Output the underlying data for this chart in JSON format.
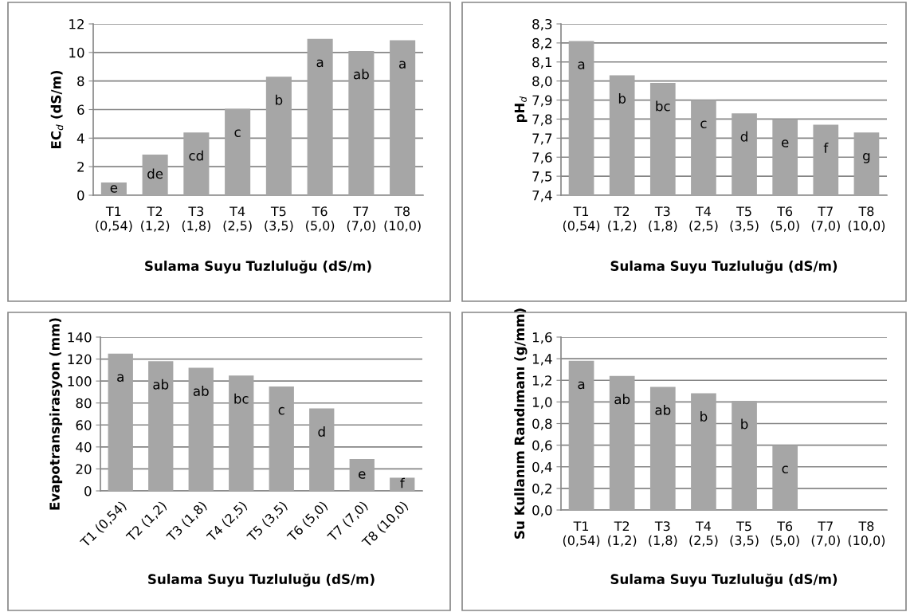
{
  "chart_data": [
    {
      "type": "bar",
      "categories": [
        "T1\n(0,54)",
        "T2\n(1,2)",
        "T3\n(1,8)",
        "T4\n(2,5)",
        "T5\n(3,5)",
        "T6\n(5,0)",
        "T7\n(7,0)",
        "T8\n(10,0)"
      ],
      "values": [
        0.9,
        2.85,
        4.4,
        6.05,
        8.3,
        10.95,
        10.1,
        10.85
      ],
      "value_labels": [
        "e",
        "de",
        "cd",
        "c",
        "b",
        "a",
        "ab",
        "a"
      ],
      "color": "#a6a6a6",
      "xlabel": "Sulama Suyu Tuzluluğu (dS/m)",
      "ylabel": "EC$_{d}$ (dS/m)",
      "ylim": [
        0,
        12
      ],
      "yticks": [
        0,
        2,
        4,
        6,
        8,
        10,
        12
      ],
      "grid": "y",
      "legend": false
    },
    {
      "type": "bar",
      "categories": [
        "T1\n(0,54)",
        "T2\n(1,2)",
        "T3\n(1,8)",
        "T4\n(2,5)",
        "T5\n(3,5)",
        "T6\n(5,0)",
        "T7\n(7,0)",
        "T8\n(10,0)"
      ],
      "values": [
        8.21,
        8.03,
        7.99,
        7.9,
        7.83,
        7.8,
        7.77,
        7.73
      ],
      "value_labels": [
        "a",
        "b",
        "bc",
        "c",
        "d",
        "e",
        "f",
        "g"
      ],
      "color": "#a6a6a6",
      "xlabel": "Sulama Suyu Tuzluluğu (dS/m)",
      "ylabel": "pH$_{d}$",
      "ylim": [
        7.4,
        8.3
      ],
      "yticks": [
        {
          "value": 7.4,
          "label": "7,4"
        },
        {
          "value": 7.5,
          "label": "7,5"
        },
        {
          "value": 7.6,
          "label": "7,6"
        },
        {
          "value": 7.7,
          "label": "7,7"
        },
        {
          "value": 7.8,
          "label": "7,8"
        },
        {
          "value": 7.9,
          "label": "7,9"
        },
        {
          "value": 8.0,
          "label": "8,0"
        },
        {
          "value": 8.1,
          "label": "8,1"
        },
        {
          "value": 8.2,
          "label": "8,2"
        },
        {
          "value": 8.3,
          "label": "8,3"
        }
      ],
      "grid": "y",
      "legend": false
    },
    {
      "type": "bar",
      "categories": [
        "T1 (0,54)",
        "T2 (1,2)",
        "T3 (1,8)",
        "T4 (2,5)",
        "T5 (3,5)",
        "T6 (5,0)",
        "T7 (7,0)",
        "T8 (10,0)"
      ],
      "values": [
        125,
        118,
        112,
        105,
        95,
        75,
        29,
        12
      ],
      "value_labels": [
        "a",
        "ab",
        "ab",
        "bc",
        "c",
        "d",
        "e",
        "f"
      ],
      "color": "#a6a6a6",
      "xlabel": "Sulama Suyu Tuzluluğu (dS/m)",
      "ylabel": "Evapotranspirasyon (mm)",
      "ylim": [
        0,
        140
      ],
      "yticks": [
        0,
        20,
        40,
        60,
        80,
        100,
        120,
        140
      ],
      "grid": "y",
      "legend": false
    },
    {
      "type": "bar",
      "categories": [
        "T1\n(0,54)",
        "T2\n(1,2)",
        "T3\n(1,8)",
        "T4\n(2,5)",
        "T5\n(3,5)",
        "T6\n(5,0)",
        "T7\n(7,0)",
        "T8\n(10,0)"
      ],
      "values": [
        1.38,
        1.24,
        1.14,
        1.08,
        1.01,
        0.6,
        null,
        null
      ],
      "value_labels": [
        "a",
        "ab",
        "ab",
        "b",
        "b",
        "c",
        null,
        null
      ],
      "color": "#a6a6a6",
      "xlabel": "Sulama Suyu Tuzluluğu (dS/m)",
      "ylabel": "Su Kullanım Randımanı (g/mm)",
      "ylim": [
        0,
        1.6
      ],
      "yticks": [
        {
          "value": 0,
          "label": "0,0"
        },
        {
          "value": 0.2,
          "label": "0,2"
        },
        {
          "value": 0.4,
          "label": "0,4"
        },
        {
          "value": 0.6,
          "label": "0,6"
        },
        {
          "value": 0.8,
          "label": "0,8"
        },
        {
          "value": 1.0,
          "label": "1,0"
        },
        {
          "value": 1.2,
          "label": "1,2"
        },
        {
          "value": 1.4,
          "label": "1,4"
        },
        {
          "value": 1.6,
          "label": "1,6"
        }
      ],
      "grid": "y",
      "legend": false
    }
  ]
}
